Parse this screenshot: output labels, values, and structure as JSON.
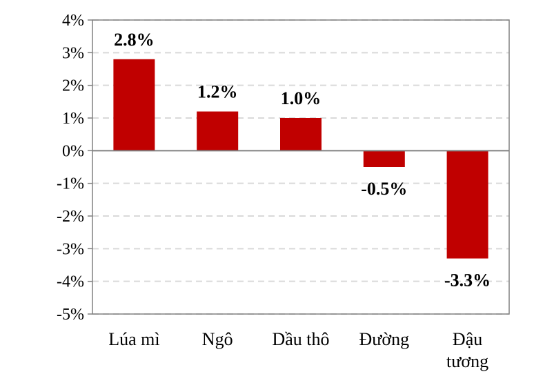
{
  "chart_data": {
    "type": "bar",
    "categories": [
      [
        "Lúa mì"
      ],
      [
        "Ngô"
      ],
      [
        "Dầu thô"
      ],
      [
        "Đường"
      ],
      [
        "Đậu",
        "tương"
      ]
    ],
    "values": [
      2.8,
      1.2,
      1.0,
      -0.5,
      -3.3
    ],
    "data_labels": [
      "2.8%",
      "1.2%",
      "1.0%",
      "-0.5%",
      "-3.3%"
    ],
    "y_ticks": [
      4,
      3,
      2,
      1,
      0,
      -1,
      -2,
      -3,
      -4,
      -5
    ],
    "y_tick_labels": [
      "4%",
      "3%",
      "2%",
      "1%",
      "0%",
      "-1%",
      "-2%",
      "-3%",
      "-4%",
      "-5%"
    ],
    "ylim": [
      -5,
      4
    ],
    "grid": true,
    "title": "",
    "xlabel": "",
    "ylabel": "",
    "colors": {
      "bar": "#c00000",
      "grid": "#d9d9d9",
      "axis": "#808080",
      "zero_line": "#808080"
    }
  }
}
